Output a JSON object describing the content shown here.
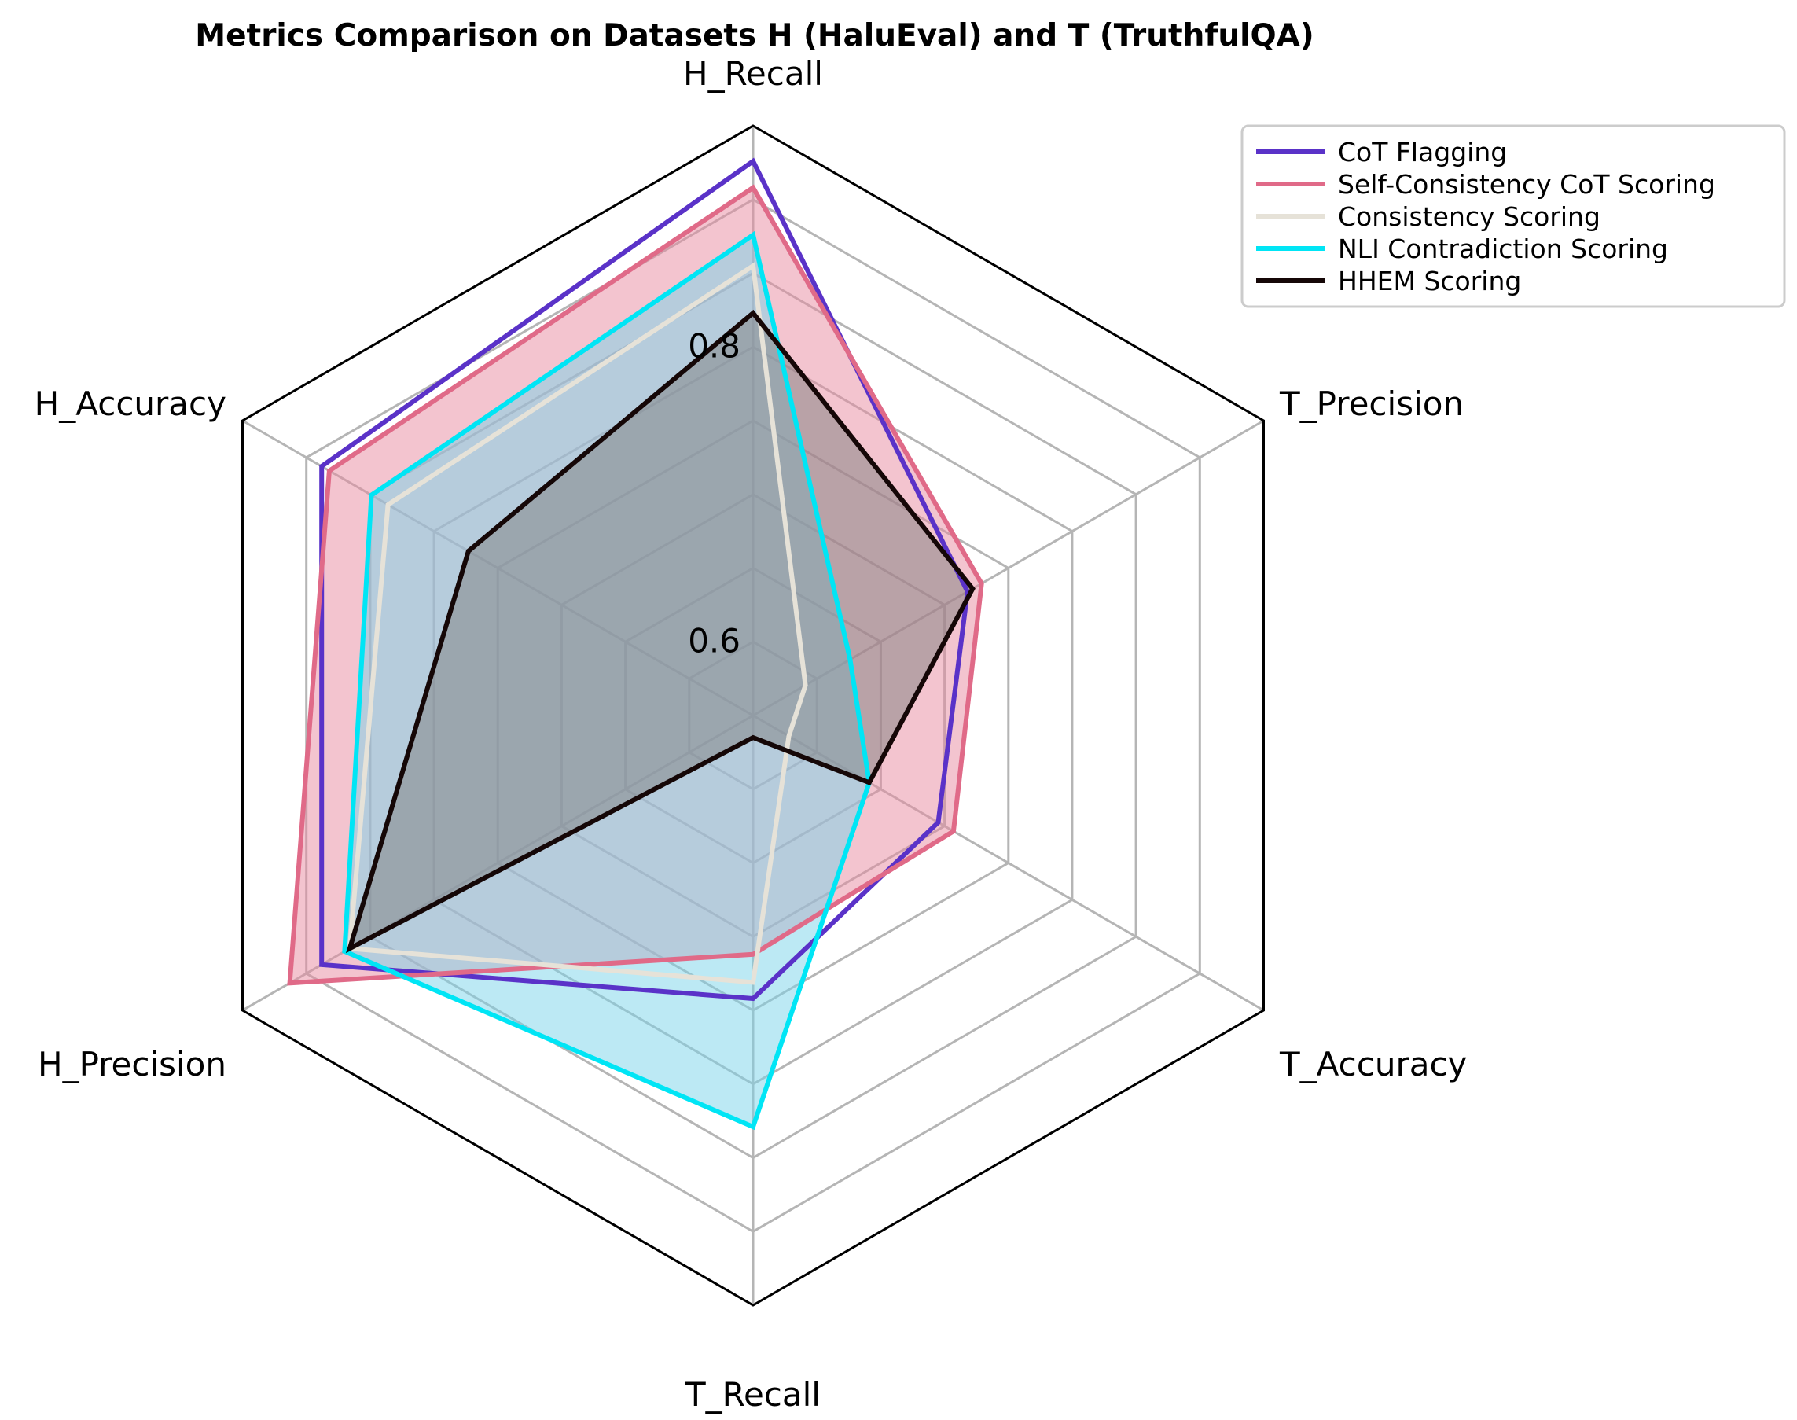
{
  "chart_data": {
    "type": "radar",
    "title": "Metrics Comparison on Datasets H (HaluEval) and T (TruthfulQA)",
    "axes": [
      "H_Recall",
      "T_Precision",
      "T_Accuracy",
      "T_Recall",
      "H_Precision",
      "H_Accuracy"
    ],
    "rlim": [
      0.55,
      0.95
    ],
    "rticks": [
      0.6,
      0.8
    ],
    "rtick_labels": [
      "0.6",
      "0.8"
    ],
    "grid": true,
    "legend_position": "top-right",
    "series": [
      {
        "name": "CoT Flagging",
        "color": "#5a32c8",
        "fill": false,
        "values": [
          0.926,
          0.718,
          0.695,
          0.742,
          0.888,
          0.888
        ]
      },
      {
        "name": "Self-Consistency CoT Scoring",
        "color": "#e06a88",
        "fill": true,
        "fill_color": "#e88aa0",
        "values": [
          0.908,
          0.729,
          0.707,
          0.712,
          0.913,
          0.882
        ]
      },
      {
        "name": "Consistency Scoring",
        "color": "#e6e2d8",
        "fill": false,
        "values": [
          0.855,
          0.591,
          0.578,
          0.731,
          0.866,
          0.836
        ]
      },
      {
        "name": "NLI Contradiction Scoring",
        "color": "#00e5f5",
        "fill": true,
        "fill_color": "#7ad4ea",
        "values": [
          0.876,
          0.626,
          0.641,
          0.829,
          0.87,
          0.849
        ]
      },
      {
        "name": "HHEM Scoring",
        "color": "#150707",
        "fill": true,
        "fill_color": "#7f7f7f",
        "values": [
          0.823,
          0.722,
          0.641,
          0.565,
          0.866,
          0.773
        ]
      }
    ]
  }
}
